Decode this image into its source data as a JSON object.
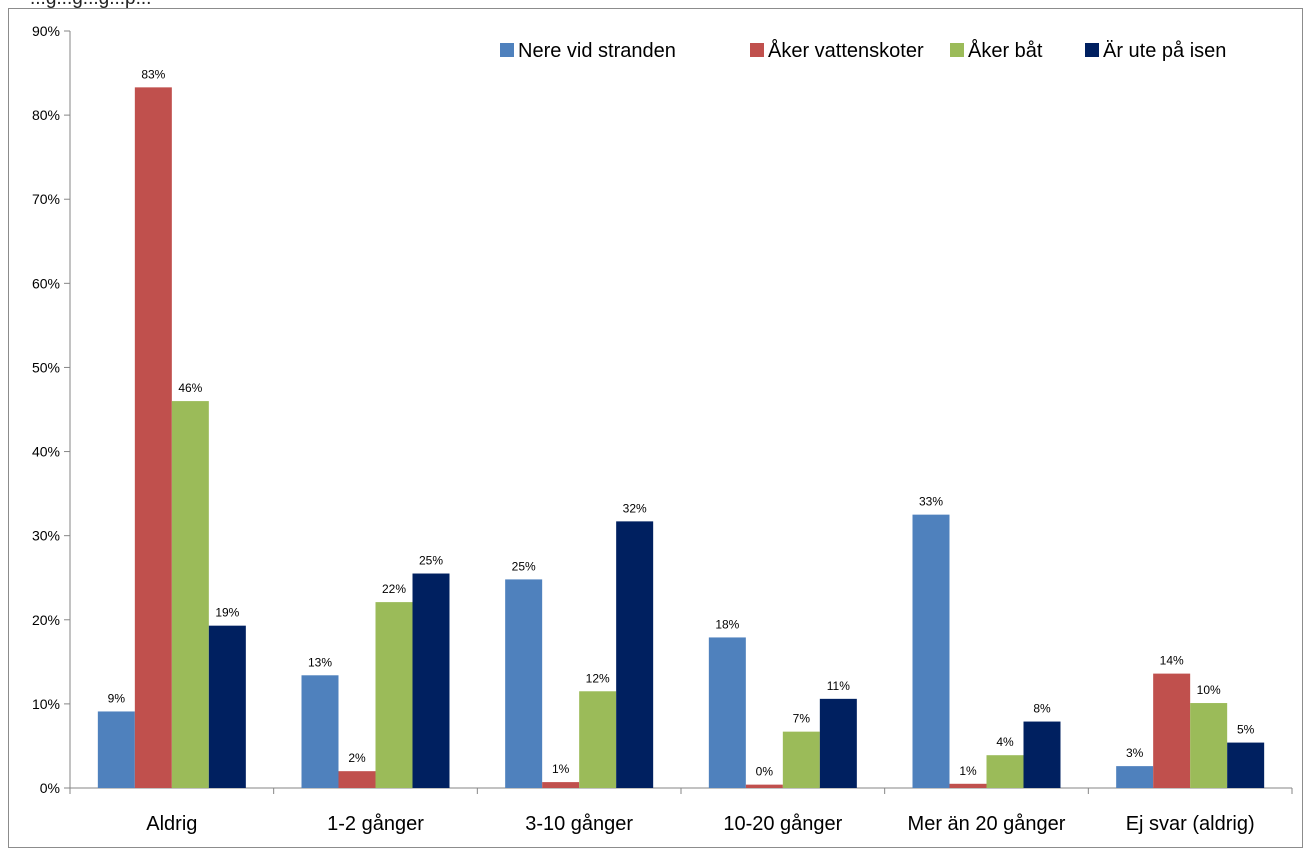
{
  "title_partial": "...g...g...g...p...",
  "chart_data": {
    "type": "bar",
    "title": "",
    "xlabel": "",
    "ylabel": "",
    "ylim": [
      0,
      90
    ],
    "y_ticks": [
      "0%",
      "10%",
      "20%",
      "30%",
      "40%",
      "50%",
      "60%",
      "70%",
      "80%",
      "90%"
    ],
    "y_tick_values": [
      0,
      10,
      20,
      30,
      40,
      50,
      60,
      70,
      80,
      90
    ],
    "grid": false,
    "legend_position": "top-right",
    "categories": [
      "Aldrig",
      "1-2 gånger",
      "3-10 gånger",
      "10-20 gånger",
      "Mer än 20 gånger",
      "Ej svar (aldrig)"
    ],
    "series": [
      {
        "name": "Nere vid stranden",
        "color": "#4f81bd",
        "values": [
          9.1,
          13.4,
          24.8,
          17.9,
          32.5,
          2.6
        ],
        "labels": [
          "9%",
          "13%",
          "25%",
          "18%",
          "33%",
          "3%"
        ]
      },
      {
        "name": "Åker vattenskoter",
        "color": "#c0504d",
        "values": [
          83.3,
          2.0,
          0.7,
          0.4,
          0.5,
          13.6
        ],
        "labels": [
          "83%",
          "2%",
          "1%",
          "0%",
          "1%",
          "14%"
        ]
      },
      {
        "name": "Åker båt",
        "color": "#9bbb59",
        "values": [
          46.0,
          22.1,
          11.5,
          6.7,
          3.9,
          10.1
        ],
        "labels": [
          "46%",
          "22%",
          "12%",
          "7%",
          "4%",
          "10%"
        ]
      },
      {
        "name": "Är ute på isen",
        "color": "#002060",
        "values": [
          19.3,
          25.5,
          31.7,
          10.6,
          7.9,
          5.4
        ],
        "labels": [
          "19%",
          "25%",
          "32%",
          "11%",
          "8%",
          "5%"
        ]
      }
    ]
  }
}
